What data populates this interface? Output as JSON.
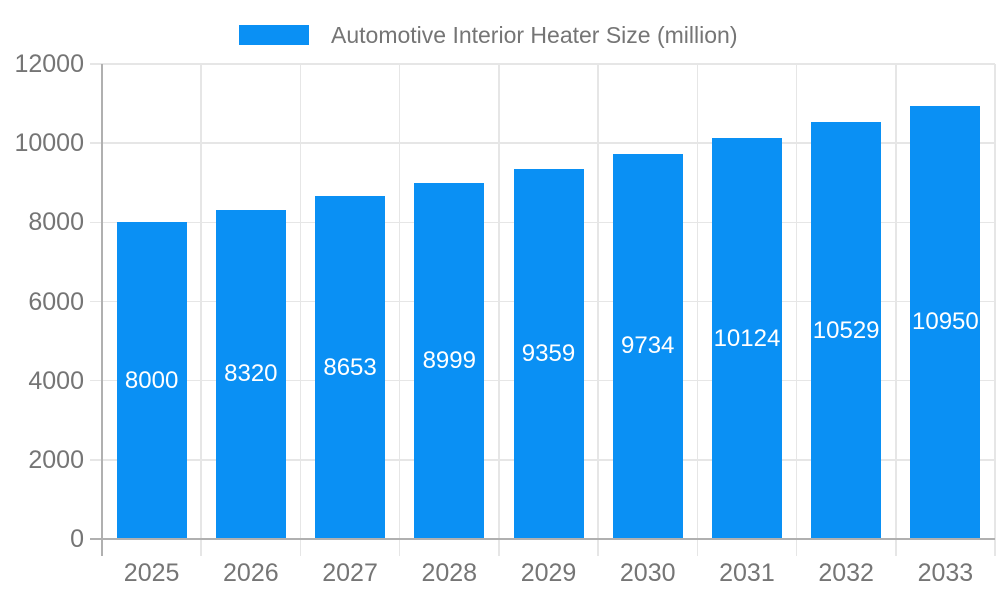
{
  "legend": {
    "label": "Automotive Interior Heater Size (million)"
  },
  "chart_data": {
    "type": "bar",
    "title": "Automotive Interior Heater Size (million)",
    "categories": [
      "2025",
      "2026",
      "2027",
      "2028",
      "2029",
      "2030",
      "2031",
      "2032",
      "2033"
    ],
    "series": [
      {
        "name": "Automotive Interior Heater Size (million)",
        "values": [
          8000,
          8320,
          8653,
          8999,
          9359,
          9734,
          10124,
          10529,
          10950
        ]
      }
    ],
    "bar_value_labels": [
      "8000",
      "8320",
      "8653",
      "8999",
      "9359",
      "9734",
      "10124",
      "10529",
      "10950"
    ],
    "xlabel": "",
    "ylabel": "",
    "ylim": [
      0,
      12000
    ],
    "yticks": [
      0,
      2000,
      4000,
      6000,
      8000,
      10000,
      12000
    ],
    "ytick_labels": [
      "0",
      "2000",
      "4000",
      "6000",
      "8000",
      "10000",
      "12000"
    ],
    "grid": true,
    "legend_position": "top",
    "colors": {
      "bar": "#0a90f4",
      "grid": "#e6e6e6",
      "axis": "#b0b0b0",
      "tick_text": "#757575",
      "bar_label_text": "#ffffff",
      "background": "#ffffff"
    }
  }
}
